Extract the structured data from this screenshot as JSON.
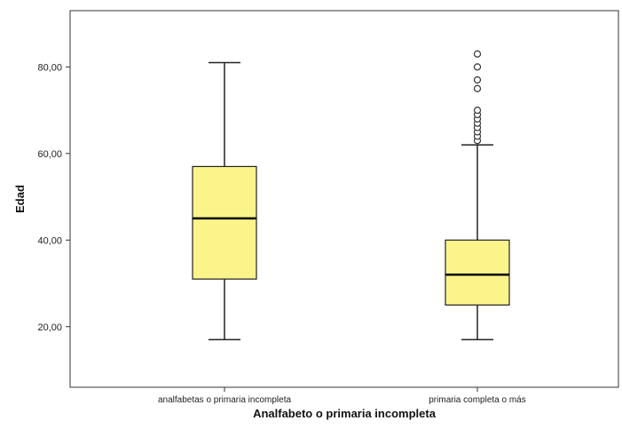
{
  "chart_data": {
    "type": "boxplot",
    "title": "",
    "xlabel": "Analfabeto o primaria incompleta",
    "ylabel": "Edad",
    "ylim": [
      6,
      93
    ],
    "yticks": [
      20,
      40,
      60,
      80
    ],
    "ytick_labels": [
      "20,00",
      "40,00",
      "60,00",
      "80,00"
    ],
    "grid": false,
    "box_color": "#fbf48a",
    "categories": [
      "analfabetas o primaria incompleta",
      "primaria completa o más"
    ],
    "boxes": [
      {
        "category": "analfabetas o primaria incompleta",
        "whisker_low": 17,
        "q1": 31,
        "median": 45,
        "q3": 57,
        "whisker_high": 81,
        "outliers": []
      },
      {
        "category": "primaria completa o más",
        "whisker_low": 17,
        "q1": 25,
        "median": 32,
        "q3": 40,
        "whisker_high": 62,
        "outliers": [
          63,
          64,
          65,
          66,
          67,
          68,
          69,
          70,
          75,
          77,
          80,
          83
        ]
      }
    ]
  }
}
